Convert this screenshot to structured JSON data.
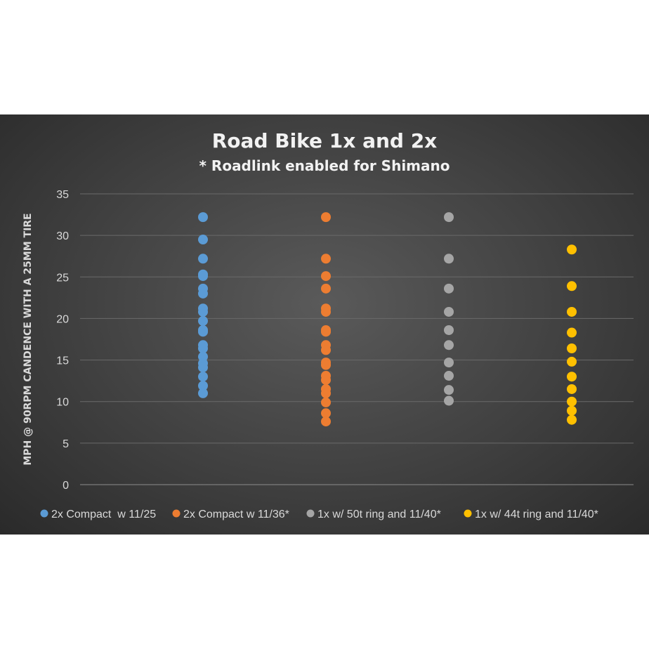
{
  "chart_data": {
    "type": "scatter",
    "title": "Road Bike 1x and 2x",
    "subtitle": "* Roadlink enabled for Shimano",
    "ylabel": "MPH @ 90RPM CANDENCE WITH A 25MM TIRE",
    "xlabel": "",
    "ylim": [
      0,
      35
    ],
    "yticks": [
      0,
      5,
      10,
      15,
      20,
      25,
      30,
      35
    ],
    "grid": true,
    "legend_position": "bottom",
    "series": [
      {
        "name": "2x Compact  w 11/25",
        "color": "#5b9bd5",
        "x": 1,
        "values": [
          32.2,
          29.5,
          27.2,
          25.3,
          25.1,
          23.6,
          23.0,
          21.2,
          20.8,
          19.7,
          18.6,
          18.4,
          16.8,
          16.4,
          15.4,
          14.6,
          14.1,
          13.0,
          11.9,
          11.0
        ]
      },
      {
        "name": "2x Compact w 11/36*",
        "color": "#ed7d31",
        "x": 2,
        "values": [
          32.2,
          27.2,
          25.1,
          23.6,
          21.2,
          20.8,
          18.6,
          18.4,
          16.8,
          16.2,
          14.7,
          14.4,
          13.1,
          12.6,
          11.5,
          11.0,
          9.9,
          8.6,
          7.6
        ]
      },
      {
        "name": "1x w/ 50t ring and 11/40*",
        "color": "#a5a5a5",
        "x": 3,
        "values": [
          32.2,
          27.2,
          23.6,
          20.8,
          18.6,
          16.8,
          14.7,
          13.1,
          11.4,
          10.1
        ]
      },
      {
        "name": "1x w/ 44t ring and 11/40*",
        "color": "#ffc000",
        "x": 4,
        "values": [
          28.3,
          23.9,
          20.8,
          18.3,
          16.4,
          14.8,
          13.0,
          11.5,
          10.0,
          8.9,
          7.8
        ]
      }
    ]
  }
}
